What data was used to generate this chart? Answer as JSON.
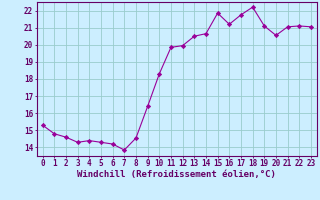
{
  "x": [
    0,
    1,
    2,
    3,
    4,
    5,
    6,
    7,
    8,
    9,
    10,
    11,
    12,
    13,
    14,
    15,
    16,
    17,
    18,
    19,
    20,
    21,
    22,
    23
  ],
  "y": [
    15.3,
    14.8,
    14.6,
    14.3,
    14.4,
    14.3,
    14.2,
    13.85,
    14.55,
    16.4,
    18.3,
    19.85,
    19.95,
    20.5,
    20.65,
    21.85,
    21.2,
    21.75,
    22.2,
    21.1,
    20.55,
    21.05,
    21.1,
    21.05
  ],
  "line_color": "#990099",
  "marker": "D",
  "marker_size": 2.2,
  "bg_color": "#cceeff",
  "grid_color": "#99cccc",
  "xlabel": "Windchill (Refroidissement éolien,°C)",
  "xlim": [
    -0.5,
    23.5
  ],
  "ylim": [
    13.5,
    22.5
  ],
  "yticks": [
    14,
    15,
    16,
    17,
    18,
    19,
    20,
    21,
    22
  ],
  "xticks": [
    0,
    1,
    2,
    3,
    4,
    5,
    6,
    7,
    8,
    9,
    10,
    11,
    12,
    13,
    14,
    15,
    16,
    17,
    18,
    19,
    20,
    21,
    22,
    23
  ],
  "tick_color": "#660066",
  "label_color": "#660066",
  "axis_color": "#660066",
  "tick_fontsize": 5.5,
  "xlabel_fontsize": 6.5
}
